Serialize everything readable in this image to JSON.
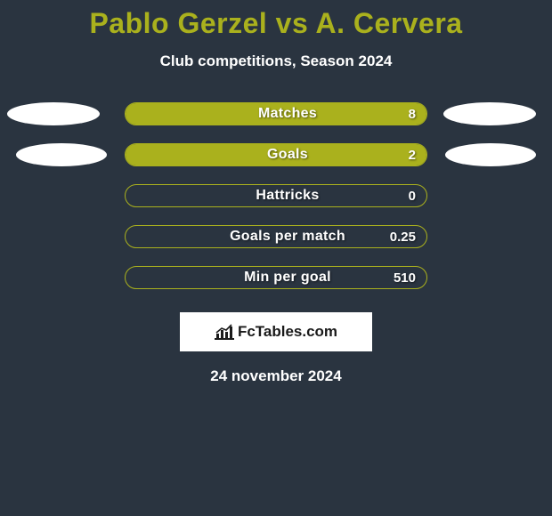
{
  "title": "Pablo Gerzel vs A. Cervera",
  "subtitle": "Club competitions, Season 2024",
  "date": "24 november 2024",
  "colors": {
    "background": "#2a3440",
    "accent": "#aab11d",
    "text": "#ffffff",
    "ellipse": "#ffffff",
    "logo_bg": "#ffffff",
    "logo_text": "#1a1a1a"
  },
  "logo": {
    "text": "FcTables.com"
  },
  "rows": [
    {
      "label": "Matches",
      "value": "8",
      "fill_pct": 100,
      "ellipse_left": true,
      "ellipse_right": true
    },
    {
      "label": "Goals",
      "value": "2",
      "fill_pct": 100,
      "ellipse_left": true,
      "ellipse_right": true
    },
    {
      "label": "Hattricks",
      "value": "0",
      "fill_pct": 0,
      "ellipse_left": false,
      "ellipse_right": false
    },
    {
      "label": "Goals per match",
      "value": "0.25",
      "fill_pct": 0,
      "ellipse_left": false,
      "ellipse_right": false
    },
    {
      "label": "Min per goal",
      "value": "510",
      "fill_pct": 0,
      "ellipse_left": false,
      "ellipse_right": false
    }
  ]
}
